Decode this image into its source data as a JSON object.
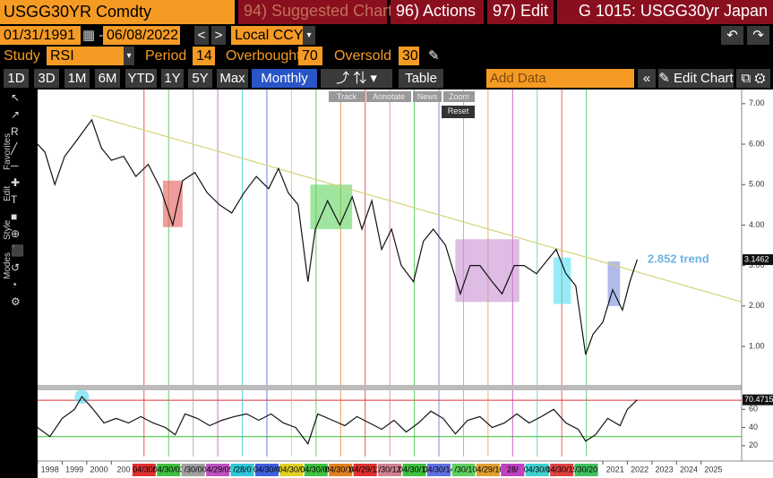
{
  "ui": {
    "ticker": "USGG30YR Comdty",
    "suggested": "94) Suggested Charts",
    "actions": "96) Actions",
    "edit": "97) Edit",
    "function": "G 1015: USGG30yr Japan",
    "start_date": "01/31/1991",
    "end_date": "06/08/2022",
    "currency": "Local CCY",
    "study_label": "Study",
    "study": "RSI",
    "period_label": "Period",
    "period": "14",
    "overbought_label": "Overbought",
    "overbought": "70",
    "oversold_label": "Oversold",
    "oversold": "30",
    "ranges": [
      "1D",
      "3D",
      "1M",
      "6M",
      "YTD",
      "1Y",
      "5Y",
      "Max"
    ],
    "frequency": "Monthly",
    "table": "Table",
    "add_data": "Add Data",
    "edit_chart": "Edit Chart",
    "tools": [
      "Track",
      "Annotate",
      "News",
      "Zoom"
    ],
    "reset": "Reset",
    "side": [
      "Favorites",
      "Edit",
      "Style",
      "Modes"
    ]
  },
  "chart_data": [
    {
      "type": "line",
      "color": "#111111",
      "x": [
        1998.0,
        1998.3,
        1998.7,
        1999.1,
        1999.6,
        2000.2,
        2000.6,
        2001.0,
        2001.5,
        2002.0,
        2002.5,
        2003.0,
        2003.5,
        2003.9,
        2004.4,
        2004.9,
        2005.4,
        2005.9,
        2006.4,
        2006.9,
        2007.4,
        2007.8,
        2008.2,
        2008.6,
        2009.0,
        2009.3,
        2009.8,
        2010.3,
        2010.8,
        2011.2,
        2011.6,
        2012.0,
        2012.4,
        2012.8,
        2013.3,
        2013.7,
        2014.1,
        2014.6,
        2015.2,
        2015.6,
        2016.0,
        2016.5,
        2016.9,
        2017.4,
        2017.8,
        2018.3,
        2018.7,
        2019.1,
        2019.5,
        2019.9,
        2020.3,
        2020.6,
        2021.0,
        2021.4,
        2021.8,
        2022.1,
        2022.4
      ],
      "values": [
        6.0,
        5.8,
        5.0,
        5.7,
        6.1,
        6.6,
        5.9,
        5.6,
        5.7,
        5.2,
        5.5,
        4.9,
        4.0,
        5.1,
        5.3,
        4.8,
        4.5,
        4.3,
        4.8,
        5.2,
        4.9,
        5.4,
        4.8,
        4.5,
        2.6,
        3.9,
        4.6,
        4.0,
        4.7,
        3.9,
        4.6,
        3.4,
        3.9,
        3.0,
        2.6,
        3.6,
        3.9,
        3.5,
        2.3,
        3.0,
        3.0,
        2.6,
        2.3,
        3.0,
        3.0,
        2.8,
        3.1,
        3.4,
        2.8,
        2.5,
        0.8,
        1.3,
        1.6,
        2.4,
        1.9,
        2.6,
        3.1462
      ],
      "last_label": "3.1462",
      "xlim": [
        1998,
        2026.65
      ],
      "ylim": [
        0.05,
        7.35
      ],
      "xticks": [
        1998,
        1999,
        2000,
        {
          "value": 2001,
          "label": "200"
        },
        2021,
        2022,
        2023,
        2024,
        2025
      ],
      "yticks": [
        {
          "value": 1,
          "label": "1.00"
        },
        {
          "value": 2,
          "label": "2.00"
        },
        {
          "value": 3,
          "label": "3.00"
        },
        {
          "value": 4,
          "label": "4.00"
        },
        {
          "value": 5,
          "label": "5.00"
        },
        {
          "value": 6,
          "label": "6.00"
        },
        {
          "value": 7,
          "label": "7.00"
        }
      ],
      "trend_line": {
        "x": [
          2000.2,
          2026.65
        ],
        "values": [
          6.72,
          2.1
        ],
        "color": "#d4d47a"
      },
      "trend_label": "2.852 trend",
      "highlights": [
        {
          "x": [
            2003.1,
            2003.9
          ],
          "y": [
            3.95,
            5.1
          ],
          "color": "#e85a5a"
        },
        {
          "x": [
            2009.1,
            2010.8
          ],
          "y": [
            3.9,
            5.0
          ],
          "color": "#5fd35f"
        },
        {
          "x": [
            2015.0,
            2017.6
          ],
          "y": [
            2.1,
            3.65
          ],
          "color": "#c890d0"
        },
        {
          "x": [
            2019.0,
            2019.7
          ],
          "y": [
            2.05,
            3.2
          ],
          "color": "#50e0f0"
        },
        {
          "x": [
            2021.2,
            2021.7
          ],
          "y": [
            2.0,
            3.1
          ],
          "color": "#7b8ee0"
        }
      ],
      "events": [
        {
          "x": 2002.33,
          "label": "04/30/",
          "color": "#e03030"
        },
        {
          "x": 2003.33,
          "label": "04/30/03",
          "color": "#40c040"
        },
        {
          "x": 2004.33,
          "label": "/30/0",
          "color": "#a0a0a0"
        },
        {
          "x": 2005.33,
          "label": "04/29/05",
          "color": "#c050c0"
        },
        {
          "x": 2006.33,
          "label": "/28/0",
          "color": "#30c8d8"
        },
        {
          "x": 2007.33,
          "label": "04/30/0",
          "color": "#4060e0"
        },
        {
          "x": 2008.33,
          "label": "04/30/0",
          "color": "#e0d020"
        },
        {
          "x": 2009.33,
          "label": "04/30/09",
          "color": "#40c040"
        },
        {
          "x": 2010.33,
          "label": "04/30/10",
          "color": "#e08020"
        },
        {
          "x": 2011.33,
          "label": "04/29/11",
          "color": "#e03030"
        },
        {
          "x": 2012.33,
          "label": "/30/12",
          "color": "#d08090"
        },
        {
          "x": 2013.33,
          "label": "04/30/13",
          "color": "#40c040"
        },
        {
          "x": 2014.33,
          "label": "04/30/14",
          "color": "#6070e0"
        },
        {
          "x": 2015.33,
          "label": "/30/1",
          "color": "#60d060"
        },
        {
          "x": 2016.33,
          "label": "04/29/16",
          "color": "#e0a030"
        },
        {
          "x": 2017.33,
          "label": "28/",
          "color": "#c040c0"
        },
        {
          "x": 2018.33,
          "label": "04/30/1",
          "color": "#40d0d0"
        },
        {
          "x": 2019.33,
          "label": "04/30/19",
          "color": "#e04040"
        },
        {
          "x": 2020.33,
          "label": "/30/20",
          "color": "#40c060"
        }
      ]
    },
    {
      "type": "line",
      "color": "#111111",
      "x": [
        1998.0,
        1998.5,
        1999.0,
        1999.5,
        1999.8,
        2000.2,
        2000.7,
        2001.2,
        2001.7,
        2002.2,
        2002.7,
        2003.2,
        2003.6,
        2004.0,
        2004.5,
        2005.0,
        2005.5,
        2006.0,
        2006.5,
        2007.0,
        2007.5,
        2008.0,
        2008.5,
        2009.0,
        2009.4,
        2010.0,
        2010.5,
        2011.0,
        2011.5,
        2012.0,
        2012.5,
        2013.0,
        2013.5,
        2014.0,
        2014.5,
        2015.0,
        2015.5,
        2016.0,
        2016.5,
        2017.0,
        2017.5,
        2018.0,
        2018.5,
        2019.0,
        2019.5,
        2020.0,
        2020.3,
        2020.7,
        2021.2,
        2021.7,
        2022.0,
        2022.4
      ],
      "values": [
        40,
        30,
        50,
        60,
        74,
        62,
        45,
        50,
        45,
        52,
        45,
        40,
        32,
        55,
        50,
        42,
        48,
        52,
        55,
        48,
        55,
        45,
        40,
        22,
        55,
        48,
        42,
        52,
        45,
        38,
        48,
        35,
        45,
        58,
        50,
        33,
        48,
        52,
        40,
        45,
        55,
        45,
        52,
        60,
        45,
        38,
        25,
        32,
        50,
        42,
        60,
        70.4715
      ],
      "last_label": "70.4715",
      "xlim": [
        1998,
        2026.65
      ],
      "ylim": [
        8,
        81
      ],
      "yticks": [
        20,
        40,
        60
      ],
      "levels": [
        {
          "value": 70,
          "color": "#e03030"
        },
        {
          "value": 30,
          "color": "#30c030"
        }
      ]
    }
  ]
}
